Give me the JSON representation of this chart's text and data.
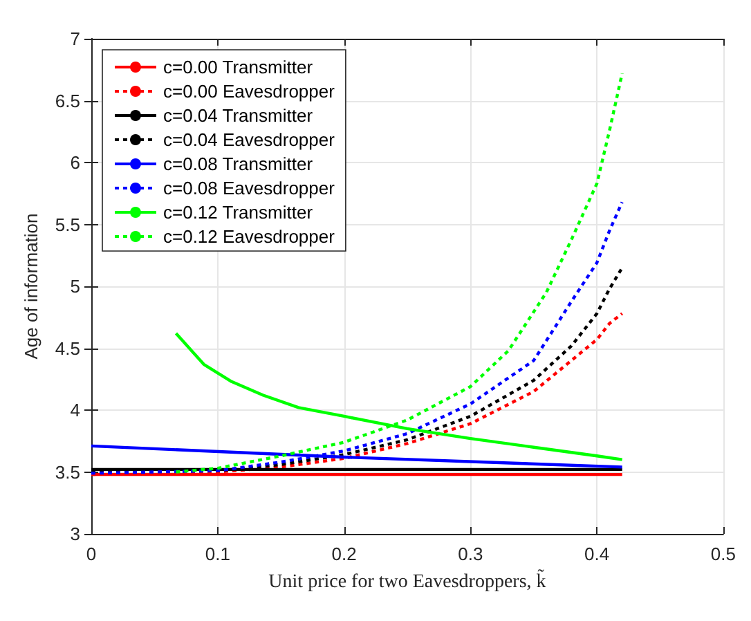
{
  "chart_data": {
    "type": "line",
    "xlabel": "Unit price for two Eavesdroppers, k̃",
    "ylabel": "Age of information",
    "xlim": [
      0,
      0.5
    ],
    "xticks": [
      0,
      0.1,
      0.2,
      0.3,
      0.4,
      0.5
    ],
    "ylim": [
      3,
      7
    ],
    "yticks": [
      3,
      3.5,
      4,
      4.5,
      5,
      5.5,
      6,
      6.5,
      7
    ],
    "grid": true,
    "legend": "top left",
    "marker": "none",
    "series": [
      {
        "name": "c=0.00 Transmitter",
        "color": "#ff0000",
        "line_style": "solid",
        "x": [
          0,
          0.42
        ],
        "values": [
          3.48,
          3.48
        ]
      },
      {
        "name": "c=0.00 Eavesdropper",
        "color": "#ff0000",
        "line_style": "dotted",
        "x": [
          0,
          0.1,
          0.15,
          0.2,
          0.25,
          0.3,
          0.35,
          0.4,
          0.41,
          0.42
        ],
        "values": [
          3.48,
          3.5,
          3.54,
          3.61,
          3.73,
          3.89,
          4.15,
          4.57,
          4.7,
          4.78
        ]
      },
      {
        "name": "c=0.04 Transmitter",
        "color": "#000000",
        "line_style": "solid",
        "x": [
          0,
          0.42
        ],
        "values": [
          3.52,
          3.52
        ]
      },
      {
        "name": "c=0.04 Eavesdropper",
        "color": "#000000",
        "line_style": "dotted",
        "x": [
          0,
          0.1,
          0.15,
          0.2,
          0.25,
          0.3,
          0.35,
          0.38,
          0.4,
          0.41,
          0.42
        ],
        "values": [
          3.51,
          3.51,
          3.56,
          3.64,
          3.76,
          3.95,
          4.24,
          4.52,
          4.78,
          4.98,
          5.15
        ]
      },
      {
        "name": "c=0.08 Transmitter",
        "color": "#0000ff",
        "line_style": "solid",
        "x": [
          0,
          0.2,
          0.42
        ],
        "values": [
          3.71,
          3.62,
          3.54
        ]
      },
      {
        "name": "c=0.08 Eavesdropper",
        "color": "#0000ff",
        "line_style": "dotted",
        "x": [
          0,
          0.1,
          0.15,
          0.2,
          0.25,
          0.3,
          0.35,
          0.38,
          0.4,
          0.41,
          0.42
        ],
        "values": [
          3.49,
          3.51,
          3.58,
          3.67,
          3.81,
          4.05,
          4.4,
          4.88,
          5.19,
          5.45,
          5.68
        ]
      },
      {
        "name": "c=0.12 Transmitter",
        "color": "#00ff00",
        "line_style": "solid",
        "x": [
          0.067,
          0.089,
          0.111,
          0.136,
          0.164,
          0.2,
          0.25,
          0.3,
          0.35,
          0.4,
          0.42
        ],
        "values": [
          4.62,
          4.37,
          4.23,
          4.12,
          4.02,
          3.95,
          3.85,
          3.77,
          3.7,
          3.63,
          3.6
        ]
      },
      {
        "name": "c=0.12 Eavesdropper",
        "color": "#00ff00",
        "line_style": "dotted",
        "x": [
          0.067,
          0.1,
          0.15,
          0.2,
          0.25,
          0.3,
          0.33,
          0.36,
          0.38,
          0.4,
          0.41,
          0.42
        ],
        "values": [
          3.5,
          3.53,
          3.63,
          3.74,
          3.92,
          4.19,
          4.48,
          4.95,
          5.38,
          5.83,
          6.26,
          6.72
        ]
      }
    ]
  }
}
